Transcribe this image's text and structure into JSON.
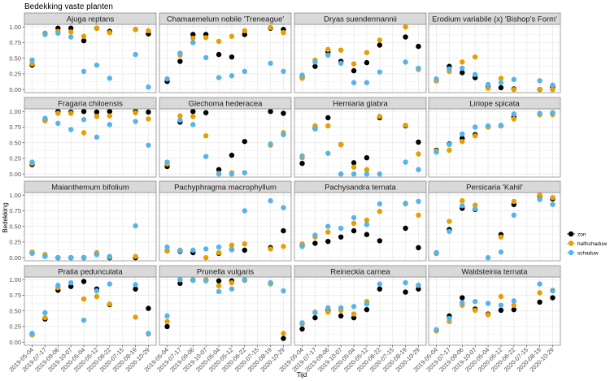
{
  "chart_data": {
    "type": "scatter",
    "title": "Bedekking vaste planten",
    "xlabel": "Tijd",
    "ylabel": "Bedekking",
    "ylim": [
      0,
      1
    ],
    "yticks": [
      "0.00",
      "0.25",
      "0.50",
      "0.75",
      "1.00"
    ],
    "ytick_values": [
      0,
      0.25,
      0.5,
      0.75,
      1
    ],
    "categories": [
      "2019-05-04",
      "2019-07-17",
      "2019-09-06",
      "2019-10-07",
      "2020-05-04",
      "2020-05-12",
      "2020-06-22",
      "2020-07-15",
      "2020-08-19",
      "2020-10-29"
    ],
    "legend": {
      "position": "right",
      "entries": [
        "zon",
        "halfschaduw",
        "schaduw"
      ]
    },
    "colors": {
      "zon": "#000000",
      "halfschaduw": "#E69F00",
      "schaduw": "#56B4E9"
    },
    "grid": true,
    "panels": [
      {
        "name": "Ajuga reptans",
        "series": {
          "zon": [
            0.39,
            0.9,
            0.98,
            0.98,
            0.78,
            0.98,
            0.93,
            null,
            0.96,
            0.89
          ],
          "halfschaduw": [
            0.41,
            0.9,
            0.93,
            0.92,
            0.85,
            0.98,
            0.91,
            null,
            0.96,
            0.94
          ],
          "schaduw": [
            0.47,
            0.88,
            0.9,
            0.84,
            0.29,
            0.39,
            0.18,
            null,
            0.56,
            0.04
          ]
        }
      },
      {
        "name": "Chamaemelum nobile 'Treneague'",
        "series": {
          "zon": [
            0.13,
            0.45,
            0.88,
            0.88,
            0.56,
            0.52,
            0.88,
            null,
            0.98,
            0.96
          ],
          "halfschaduw": [
            0.17,
            0.55,
            0.82,
            0.83,
            0.77,
            0.85,
            0.94,
            null,
            0.99,
            0.91
          ],
          "schaduw": [
            0.17,
            0.58,
            0.75,
            0.51,
            0.19,
            0.22,
            0.29,
            null,
            0.42,
            0.29
          ]
        }
      },
      {
        "name": "Dryas suendermannii",
        "series": {
          "zon": [
            0.19,
            0.37,
            0.6,
            0.45,
            0.3,
            0.43,
            0.71,
            null,
            0.84,
            0.69
          ],
          "halfschaduw": [
            0.18,
            0.47,
            0.64,
            0.63,
            0.41,
            0.59,
            0.79,
            null,
            1.0,
            0.32
          ],
          "schaduw": [
            0.23,
            0.44,
            0.55,
            0.42,
            0.11,
            0.11,
            0.28,
            null,
            0.44,
            0.34
          ]
        }
      },
      {
        "name": "Erodium variabile (x) 'Bishop's Form'",
        "series": {
          "zon": [
            0.14,
            0.37,
            0.27,
            0.19,
            0.04,
            0.03,
            0.01,
            null,
            0.0,
            0.04
          ],
          "halfschaduw": [
            0.14,
            0.29,
            0.44,
            0.52,
            0.02,
            0.18,
            0.0,
            null,
            0.0,
            0.0
          ],
          "schaduw": [
            0.17,
            0.33,
            0.34,
            0.24,
            0.08,
            0.11,
            0.16,
            null,
            0.14,
            0.07
          ]
        }
      },
      {
        "name": "Fragaria chiloensis",
        "series": {
          "zon": [
            0.15,
            0.86,
            1.0,
            0.99,
            1.0,
            0.99,
            1.0,
            null,
            1.0,
            0.99
          ],
          "halfschaduw": [
            0.17,
            0.85,
            0.97,
            0.97,
            0.66,
            0.92,
            0.93,
            null,
            0.98,
            0.88
          ],
          "schaduw": [
            0.19,
            0.89,
            0.81,
            0.71,
            0.87,
            0.59,
            0.79,
            null,
            0.84,
            0.46
          ]
        }
      },
      {
        "name": "Glechoma hederacea",
        "series": {
          "zon": [
            0.12,
            0.83,
            1.0,
            0.98,
            0.07,
            0.3,
            0.52,
            null,
            1.0,
            0.97
          ],
          "halfschaduw": [
            0.16,
            0.93,
            0.92,
            0.61,
            0.01,
            0.02,
            0.02,
            null,
            0.46,
            0.66
          ],
          "schaduw": [
            0.19,
            0.86,
            0.79,
            0.28,
            0.0,
            0.0,
            0.02,
            null,
            0.48,
            0.63
          ]
        }
      },
      {
        "name": "Herniaria glabra",
        "series": {
          "zon": [
            0.17,
            0.73,
            0.9,
            0.47,
            0.18,
            0.26,
            0.9,
            null,
            0.77,
            0.51
          ],
          "halfschaduw": [
            0.26,
            0.77,
            0.77,
            0.47,
            0.11,
            0.07,
            0.92,
            null,
            0.78,
            0.32
          ],
          "schaduw": [
            0.29,
            0.72,
            0.33,
            0.0,
            0.0,
            0.0,
            0.0,
            null,
            0.19,
            0.07
          ]
        }
      },
      {
        "name": "Liriope spicata",
        "series": {
          "zon": [
            0.38,
            0.48,
            0.57,
            0.63,
            0.76,
            0.77,
            0.91,
            null,
            0.96,
            0.97
          ],
          "halfschaduw": [
            0.37,
            0.38,
            0.52,
            0.61,
            0.75,
            0.77,
            0.88,
            null,
            0.95,
            0.95
          ],
          "schaduw": [
            0.35,
            0.47,
            0.64,
            0.75,
            0.77,
            0.78,
            0.96,
            null,
            0.97,
            0.98
          ]
        }
      },
      {
        "name": "Maianthemum bifolium",
        "series": {
          "zon": [
            0.08,
            0.03,
            0.0,
            0.0,
            0.0,
            0.06,
            0.0,
            null,
            0.0,
            null
          ],
          "halfschaduw": [
            0.09,
            0.05,
            null,
            null,
            null,
            0.08,
            0.01,
            null,
            0.02,
            null
          ],
          "schaduw": [
            0.07,
            0.02,
            0.0,
            0.0,
            0.0,
            0.05,
            0.02,
            null,
            0.51,
            null
          ]
        }
      },
      {
        "name": "Pachyphragma macrophyllum",
        "series": {
          "zon": [
            0.11,
            0.1,
            0.08,
            null,
            0.07,
            0.13,
            0.12,
            null,
            0.16,
            0.43
          ],
          "halfschaduw": [
            0.11,
            0.12,
            null,
            0.0,
            0.08,
            0.2,
            0.22,
            null,
            0.14,
            0.18
          ],
          "schaduw": [
            0.17,
            0.11,
            0.12,
            0.14,
            0.17,
            0.13,
            0.75,
            null,
            0.91,
            0.8
          ]
        }
      },
      {
        "name": "Pachysandra ternata",
        "series": {
          "zon": [
            0.2,
            0.23,
            0.26,
            0.33,
            0.43,
            0.37,
            0.27,
            null,
            0.47,
            0.16
          ],
          "halfschaduw": [
            0.22,
            0.33,
            0.41,
            null,
            0.55,
            0.6,
            0.74,
            null,
            0.86,
            0.68
          ],
          "schaduw": [
            0.18,
            0.36,
            0.5,
            0.47,
            0.64,
            0.53,
            0.86,
            null,
            0.87,
            0.9
          ]
        }
      },
      {
        "name": "Persicaria 'Kahil'",
        "series": {
          "zon": [
            0.07,
            0.45,
            0.79,
            0.77,
            null,
            0.37,
            0.85,
            null,
            0.98,
            0.94
          ],
          "halfschaduw": [
            0.07,
            0.58,
            0.91,
            0.84,
            null,
            0.33,
            0.9,
            null,
            1.0,
            0.96
          ],
          "schaduw": [
            0.08,
            0.42,
            0.83,
            0.78,
            0.0,
            0.09,
            0.68,
            null,
            0.93,
            0.85
          ]
        }
      },
      {
        "name": "Pratia pedunculata",
        "series": {
          "zon": [
            0.12,
            0.37,
            0.83,
            0.89,
            0.97,
            0.85,
            0.6,
            null,
            0.85,
            0.54
          ],
          "halfschaduw": [
            0.12,
            0.39,
            0.87,
            null,
            0.69,
            0.73,
            0.61,
            null,
            0.4,
            0.13
          ],
          "schaduw": [
            0.14,
            0.47,
            0.91,
            0.95,
            0.35,
            0.82,
            0.93,
            null,
            0.92,
            0.14
          ]
        }
      },
      {
        "name": "Prunella vulgaris",
        "series": {
          "zon": [
            0.25,
            0.94,
            0.99,
            0.99,
            0.98,
            0.98,
            0.99,
            null,
            0.94,
            0.06
          ],
          "halfschaduw": [
            0.33,
            1.0,
            1.0,
            1.0,
            0.9,
            0.95,
            0.99,
            null,
            0.93,
            0.14
          ],
          "schaduw": [
            0.42,
            1.0,
            0.99,
            0.98,
            0.81,
            0.85,
            1.0,
            null,
            0.95,
            0.82
          ]
        }
      },
      {
        "name": "Reineckia carnea",
        "series": {
          "zon": [
            0.21,
            0.39,
            0.5,
            0.42,
            0.39,
            0.52,
            0.85,
            null,
            0.8,
            0.85
          ],
          "halfschaduw": [
            0.29,
            0.48,
            0.48,
            0.51,
            0.45,
            0.65,
            null,
            null,
            null,
            0.91
          ],
          "schaduw": [
            0.31,
            0.47,
            0.55,
            0.55,
            0.57,
            0.61,
            0.93,
            null,
            0.95,
            0.91
          ]
        }
      },
      {
        "name": "Waldsteinia ternata",
        "series": {
          "zon": [
            0.19,
            0.42,
            0.71,
            0.53,
            0.45,
            0.51,
            0.52,
            null,
            0.64,
            0.71
          ],
          "halfschaduw": [
            0.18,
            0.33,
            0.59,
            0.51,
            0.44,
            0.73,
            0.59,
            null,
            0.79,
            0.83
          ],
          "schaduw": [
            0.2,
            0.38,
            0.63,
            0.65,
            0.62,
            0.59,
            0.66,
            null,
            0.93,
            0.82
          ]
        }
      }
    ]
  }
}
